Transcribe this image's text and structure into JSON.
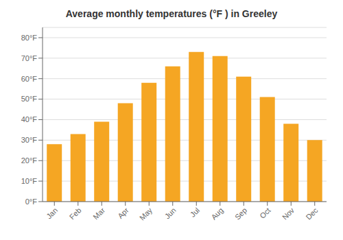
{
  "chart_data": {
    "type": "bar",
    "title": "Average monthly temperatures (°F ) in Greeley",
    "categories": [
      "Jan",
      "Feb",
      "Mar",
      "Apr",
      "May",
      "Jun",
      "Jul",
      "Aug",
      "Sep",
      "Oct",
      "Nov",
      "Dec"
    ],
    "values": [
      28,
      33,
      39,
      48,
      58,
      66,
      73,
      71,
      61,
      51,
      38,
      30
    ],
    "color": "#F5A623",
    "ylim": [
      0,
      85
    ],
    "yticks": [
      {
        "value": 0,
        "label": "0°F"
      },
      {
        "value": 10,
        "label": "10°F"
      },
      {
        "value": 20,
        "label": "20°F"
      },
      {
        "value": 30,
        "label": "30°F"
      },
      {
        "value": 40,
        "label": "40°F"
      },
      {
        "value": 50,
        "label": "50°F"
      },
      {
        "value": 60,
        "label": "60°F"
      },
      {
        "value": 70,
        "label": "70°F"
      },
      {
        "value": 80,
        "label": "80°F"
      }
    ],
    "grid": true
  }
}
